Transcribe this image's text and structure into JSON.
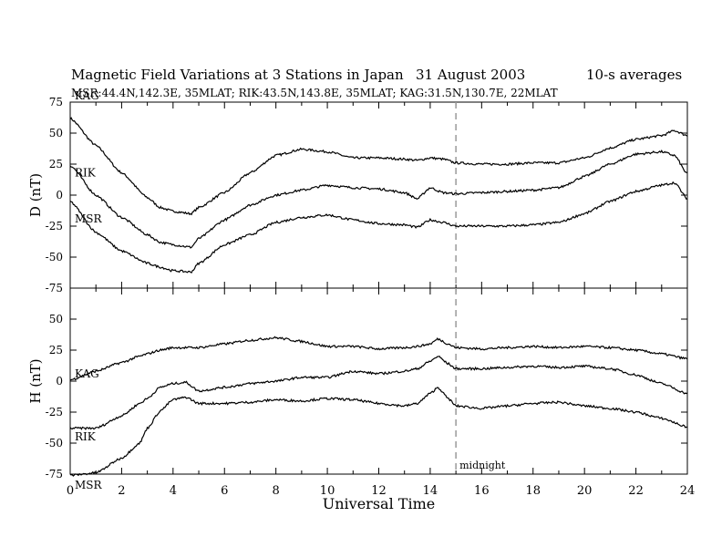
{
  "header": {
    "title": "Magnetic Field Variations at 3 Stations in Japan",
    "date": "31  August  2003",
    "averaging": "10-s averages",
    "stations": "MSR:44.4N,142.3E, 35MLAT;  RIK:43.5N,143.8E, 35MLAT;  KAG:31.5N,130.7E, 22MLAT"
  },
  "colors": {
    "trace": "#000000",
    "axis": "#000000",
    "midnight_line": "#999999"
  },
  "chart_data": [
    {
      "type": "line",
      "ylabel": "D (nT)",
      "xlabel": "",
      "xlim": [
        0,
        24
      ],
      "ylim": [
        -75,
        75
      ],
      "yticks": [
        75,
        50,
        25,
        0,
        -25,
        -50,
        -75
      ],
      "x": [
        0,
        1,
        2,
        3,
        3.5,
        4,
        4.7,
        5,
        6,
        7,
        8,
        9,
        10,
        11,
        12,
        13,
        13.5,
        14,
        14.5,
        15,
        16,
        17,
        18,
        19,
        20,
        21,
        22,
        23,
        23.5,
        24
      ],
      "series": [
        {
          "name": "KAG",
          "values": [
            62,
            40,
            18,
            -2,
            -10,
            -13,
            -15,
            -10,
            2,
            18,
            32,
            37,
            35,
            30,
            30,
            29,
            28,
            30,
            29,
            26,
            25,
            25,
            26,
            26,
            30,
            38,
            45,
            48,
            52,
            48
          ]
        },
        {
          "name": "RIK",
          "values": [
            24,
            0,
            -18,
            -32,
            -38,
            -40,
            -42,
            -35,
            -20,
            -8,
            0,
            4,
            8,
            6,
            5,
            2,
            -3,
            6,
            2,
            1,
            2,
            3,
            4,
            6,
            15,
            25,
            33,
            35,
            32,
            17
          ]
        },
        {
          "name": "MSR",
          "values": [
            -5,
            -30,
            -45,
            -55,
            -58,
            -61,
            -62,
            -55,
            -40,
            -32,
            -22,
            -18,
            -16,
            -20,
            -23,
            -24,
            -26,
            -20,
            -22,
            -25,
            -25,
            -25,
            -24,
            -22,
            -15,
            -5,
            3,
            8,
            10,
            -3
          ]
        }
      ],
      "series_labels_at_x": 0.1,
      "series_label_values": [
        80,
        18,
        -19
      ],
      "grid": false,
      "legend": "inline-left"
    },
    {
      "type": "line",
      "ylabel": "H (nT)",
      "xlabel": "Universal Time",
      "xlim": [
        0,
        24
      ],
      "ylim": [
        -75,
        75
      ],
      "yticks": [
        50,
        25,
        0,
        -25,
        -50,
        -75
      ],
      "xticks": [
        0,
        2,
        4,
        6,
        8,
        10,
        12,
        14,
        16,
        18,
        20,
        22,
        24
      ],
      "x": [
        0,
        1,
        2,
        2.7,
        3,
        3.5,
        4,
        4.5,
        5,
        6,
        7,
        8,
        9,
        10,
        11,
        12,
        13,
        13.5,
        14,
        14.3,
        14.7,
        15,
        16,
        17,
        18,
        19,
        20,
        21,
        22,
        23,
        24
      ],
      "series": [
        {
          "name": "KAG",
          "values": [
            1,
            8,
            15,
            20,
            22,
            25,
            27,
            27,
            27,
            30,
            33,
            35,
            32,
            28,
            28,
            26,
            27,
            28,
            30,
            34,
            30,
            27,
            26,
            27,
            28,
            27,
            28,
            27,
            25,
            22,
            18
          ]
        },
        {
          "name": "RIK",
          "values": [
            -38,
            -38,
            -28,
            -18,
            -14,
            -5,
            -2,
            -1,
            -8,
            -5,
            -2,
            0,
            3,
            3,
            8,
            6,
            8,
            10,
            16,
            20,
            14,
            10,
            10,
            11,
            12,
            11,
            12,
            10,
            5,
            -2,
            -10
          ]
        },
        {
          "name": "MSR",
          "values": [
            -76,
            -74,
            -62,
            -50,
            -38,
            -24,
            -15,
            -13,
            -18,
            -18,
            -17,
            -15,
            -16,
            -14,
            -15,
            -18,
            -20,
            -18,
            -10,
            -5,
            -14,
            -20,
            -22,
            -20,
            -18,
            -17,
            -20,
            -22,
            -25,
            -30,
            -37
          ]
        }
      ],
      "series_label_values": [
        6,
        -45,
        -84
      ],
      "grid": false,
      "legend": "inline-left",
      "annotations": [
        {
          "text": "midnight",
          "x": 15
        }
      ]
    }
  ]
}
